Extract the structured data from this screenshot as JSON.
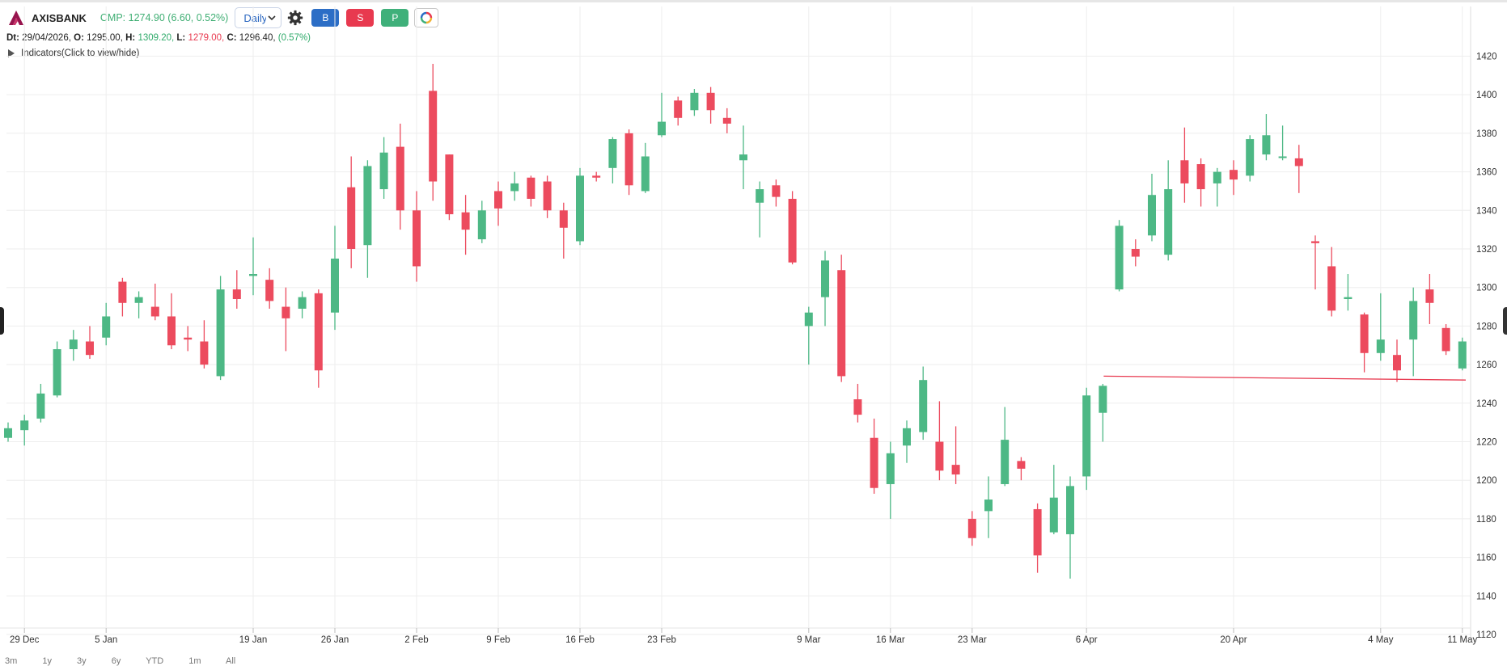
{
  "toolbar": {
    "symbol": "AXISBANK",
    "cmp_text": "CMP: 1274.90 (6.60, 0.52%)",
    "interval": "Daily",
    "buttons": {
      "buy": "B",
      "sell": "S",
      "portfolio": "P"
    },
    "icons": {
      "logo": "axis-bank-logo-icon",
      "settings": "gear-icon",
      "dropdown": "chevron-down-icon",
      "ring": "color-ring-icon"
    }
  },
  "ohlc": {
    "dt_label": "Dt:",
    "dt": "29/04/2026,",
    "o_label": "O:",
    "o": "1295.00,",
    "h_label": "H:",
    "h": "1309.20,",
    "l_label": "L:",
    "l": "1279.00,",
    "c_label": "C:",
    "c": "1296.40,",
    "change": "(0.57%)"
  },
  "indicators_label": "Indicators(Click to view/hide)",
  "range_tabs": [
    "3m",
    "1y",
    "3y",
    "6y",
    "YTD",
    "1m",
    "All"
  ],
  "colors": {
    "up": "#4db885",
    "down": "#ec4b5e",
    "grid": "#eeeeee",
    "hline": "#e8394f"
  },
  "chart_data": {
    "type": "candlestick",
    "y_ticks": [
      1120,
      1140,
      1160,
      1180,
      1200,
      1220,
      1240,
      1260,
      1280,
      1300,
      1320,
      1340,
      1360,
      1380,
      1400,
      1420
    ],
    "ylim": [
      1108,
      1428
    ],
    "x_ticks": [
      {
        "label": "29 Dec",
        "index": 1
      },
      {
        "label": "5 Jan",
        "index": 6
      },
      {
        "label": "19 Jan",
        "index": 15
      },
      {
        "label": "26 Jan",
        "index": 20
      },
      {
        "label": "2 Feb",
        "index": 25
      },
      {
        "label": "9 Feb",
        "index": 30
      },
      {
        "label": "16 Feb",
        "index": 35
      },
      {
        "label": "23 Feb",
        "index": 40
      },
      {
        "label": "9 Mar",
        "index": 49
      },
      {
        "label": "16 Mar",
        "index": 54
      },
      {
        "label": "23 Mar",
        "index": 59
      },
      {
        "label": "6 Apr",
        "index": 66
      },
      {
        "label": "20 Apr",
        "index": 75
      },
      {
        "label": "4 May",
        "index": 84
      },
      {
        "label": "11 May",
        "index": 89
      }
    ],
    "horizontal_line": {
      "value": 1254,
      "from_index": 67,
      "to_value": 1252
    },
    "candles": [
      {
        "o": 1222,
        "h": 1230,
        "l": 1220,
        "c": 1227
      },
      {
        "o": 1226,
        "h": 1234,
        "l": 1218,
        "c": 1231
      },
      {
        "o": 1232,
        "h": 1250,
        "l": 1230,
        "c": 1245
      },
      {
        "o": 1244,
        "h": 1272,
        "l": 1243,
        "c": 1268
      },
      {
        "o": 1268,
        "h": 1278,
        "l": 1262,
        "c": 1273
      },
      {
        "o": 1272,
        "h": 1280,
        "l": 1263,
        "c": 1265
      },
      {
        "o": 1274,
        "h": 1292,
        "l": 1270,
        "c": 1285
      },
      {
        "o": 1303,
        "h": 1305,
        "l": 1285,
        "c": 1292
      },
      {
        "o": 1292,
        "h": 1298,
        "l": 1284,
        "c": 1295
      },
      {
        "o": 1290,
        "h": 1302,
        "l": 1283,
        "c": 1285
      },
      {
        "o": 1285,
        "h": 1297,
        "l": 1268,
        "c": 1270
      },
      {
        "o": 1274,
        "h": 1280,
        "l": 1267,
        "c": 1273
      },
      {
        "o": 1272,
        "h": 1283,
        "l": 1258,
        "c": 1260
      },
      {
        "o": 1254,
        "h": 1306,
        "l": 1252,
        "c": 1299
      },
      {
        "o": 1299,
        "h": 1309,
        "l": 1289,
        "c": 1294
      },
      {
        "o": 1306,
        "h": 1326,
        "l": 1296,
        "c": 1307
      },
      {
        "o": 1304,
        "h": 1310,
        "l": 1289,
        "c": 1293
      },
      {
        "o": 1290,
        "h": 1300,
        "l": 1267,
        "c": 1284
      },
      {
        "o": 1289,
        "h": 1298,
        "l": 1284,
        "c": 1295
      },
      {
        "o": 1297,
        "h": 1299,
        "l": 1248,
        "c": 1257
      },
      {
        "o": 1287,
        "h": 1332,
        "l": 1278,
        "c": 1315
      },
      {
        "o": 1352,
        "h": 1368,
        "l": 1310,
        "c": 1320
      },
      {
        "o": 1322,
        "h": 1366,
        "l": 1305,
        "c": 1363
      },
      {
        "o": 1351,
        "h": 1378,
        "l": 1346,
        "c": 1370
      },
      {
        "o": 1373,
        "h": 1385,
        "l": 1330,
        "c": 1340
      },
      {
        "o": 1340,
        "h": 1350,
        "l": 1303,
        "c": 1311
      },
      {
        "o": 1402,
        "h": 1416,
        "l": 1345,
        "c": 1355
      },
      {
        "o": 1369,
        "h": 1369,
        "l": 1335,
        "c": 1338
      },
      {
        "o": 1339,
        "h": 1348,
        "l": 1317,
        "c": 1330
      },
      {
        "o": 1325,
        "h": 1345,
        "l": 1323,
        "c": 1340
      },
      {
        "o": 1350,
        "h": 1355,
        "l": 1332,
        "c": 1341
      },
      {
        "o": 1350,
        "h": 1360,
        "l": 1345,
        "c": 1354
      },
      {
        "o": 1357,
        "h": 1358,
        "l": 1342,
        "c": 1346
      },
      {
        "o": 1355,
        "h": 1358,
        "l": 1336,
        "c": 1340
      },
      {
        "o": 1340,
        "h": 1344,
        "l": 1315,
        "c": 1331
      },
      {
        "o": 1324,
        "h": 1362,
        "l": 1322,
        "c": 1358
      },
      {
        "o": 1358,
        "h": 1360,
        "l": 1355,
        "c": 1357
      },
      {
        "o": 1362,
        "h": 1378,
        "l": 1354,
        "c": 1377
      },
      {
        "o": 1380,
        "h": 1382,
        "l": 1348,
        "c": 1353
      },
      {
        "o": 1350,
        "h": 1375,
        "l": 1349,
        "c": 1368
      },
      {
        "o": 1379,
        "h": 1401,
        "l": 1378,
        "c": 1386
      },
      {
        "o": 1397,
        "h": 1399,
        "l": 1384,
        "c": 1388
      },
      {
        "o": 1392,
        "h": 1403,
        "l": 1389,
        "c": 1401
      },
      {
        "o": 1401,
        "h": 1404,
        "l": 1385,
        "c": 1392
      },
      {
        "o": 1388,
        "h": 1393,
        "l": 1380,
        "c": 1385
      },
      {
        "o": 1366,
        "h": 1384,
        "l": 1351,
        "c": 1369
      },
      {
        "o": 1344,
        "h": 1355,
        "l": 1326,
        "c": 1351
      },
      {
        "o": 1353,
        "h": 1356,
        "l": 1342,
        "c": 1347
      },
      {
        "o": 1346,
        "h": 1350,
        "l": 1312,
        "c": 1313
      },
      {
        "o": 1280,
        "h": 1290,
        "l": 1260,
        "c": 1287
      },
      {
        "o": 1295,
        "h": 1319,
        "l": 1280,
        "c": 1314
      },
      {
        "o": 1309,
        "h": 1317,
        "l": 1251,
        "c": 1254
      },
      {
        "o": 1242,
        "h": 1250,
        "l": 1230,
        "c": 1234
      },
      {
        "o": 1222,
        "h": 1232,
        "l": 1193,
        "c": 1196
      },
      {
        "o": 1198,
        "h": 1220,
        "l": 1180,
        "c": 1214
      },
      {
        "o": 1218,
        "h": 1231,
        "l": 1209,
        "c": 1227
      },
      {
        "o": 1225,
        "h": 1259,
        "l": 1221,
        "c": 1252
      },
      {
        "o": 1220,
        "h": 1241,
        "l": 1200,
        "c": 1205
      },
      {
        "o": 1208,
        "h": 1228,
        "l": 1198,
        "c": 1203
      },
      {
        "o": 1180,
        "h": 1184,
        "l": 1166,
        "c": 1170
      },
      {
        "o": 1184,
        "h": 1202,
        "l": 1170,
        "c": 1190
      },
      {
        "o": 1198,
        "h": 1238,
        "l": 1197,
        "c": 1221
      },
      {
        "o": 1210,
        "h": 1212,
        "l": 1200,
        "c": 1206
      },
      {
        "o": 1185,
        "h": 1188,
        "l": 1152,
        "c": 1161
      },
      {
        "o": 1173,
        "h": 1208,
        "l": 1172,
        "c": 1191
      },
      {
        "o": 1172,
        "h": 1202,
        "l": 1149,
        "c": 1197
      },
      {
        "o": 1202,
        "h": 1248,
        "l": 1195,
        "c": 1244
      },
      {
        "o": 1235,
        "h": 1250,
        "l": 1220,
        "c": 1249
      },
      {
        "o": 1299,
        "h": 1335,
        "l": 1298,
        "c": 1332
      },
      {
        "o": 1320,
        "h": 1325,
        "l": 1311,
        "c": 1316
      },
      {
        "o": 1327,
        "h": 1359,
        "l": 1324,
        "c": 1348
      },
      {
        "o": 1317,
        "h": 1366,
        "l": 1314,
        "c": 1351
      },
      {
        "o": 1366,
        "h": 1383,
        "l": 1344,
        "c": 1354
      },
      {
        "o": 1364,
        "h": 1367,
        "l": 1342,
        "c": 1351
      },
      {
        "o": 1354,
        "h": 1362,
        "l": 1342,
        "c": 1360
      },
      {
        "o": 1361,
        "h": 1366,
        "l": 1348,
        "c": 1356
      },
      {
        "o": 1358,
        "h": 1379,
        "l": 1355,
        "c": 1377
      },
      {
        "o": 1369,
        "h": 1390,
        "l": 1366,
        "c": 1379
      },
      {
        "o": 1368,
        "h": 1384,
        "l": 1366,
        "c": 1368
      },
      {
        "o": 1367,
        "h": 1374,
        "l": 1349,
        "c": 1363
      },
      {
        "o": 1324,
        "h": 1327,
        "l": 1299,
        "c": 1323
      },
      {
        "o": 1311,
        "h": 1321,
        "l": 1285,
        "c": 1288
      },
      {
        "o": 1294,
        "h": 1307,
        "l": 1288,
        "c": 1295
      },
      {
        "o": 1286,
        "h": 1287,
        "l": 1256,
        "c": 1266
      },
      {
        "o": 1266,
        "h": 1297,
        "l": 1262,
        "c": 1273
      },
      {
        "o": 1265,
        "h": 1273,
        "l": 1251,
        "c": 1257
      },
      {
        "o": 1273,
        "h": 1300,
        "l": 1254,
        "c": 1293
      },
      {
        "o": 1299,
        "h": 1307,
        "l": 1281,
        "c": 1292
      },
      {
        "o": 1279,
        "h": 1281,
        "l": 1265,
        "c": 1267
      },
      {
        "o": 1258,
        "h": 1274,
        "l": 1257,
        "c": 1272
      }
    ]
  }
}
